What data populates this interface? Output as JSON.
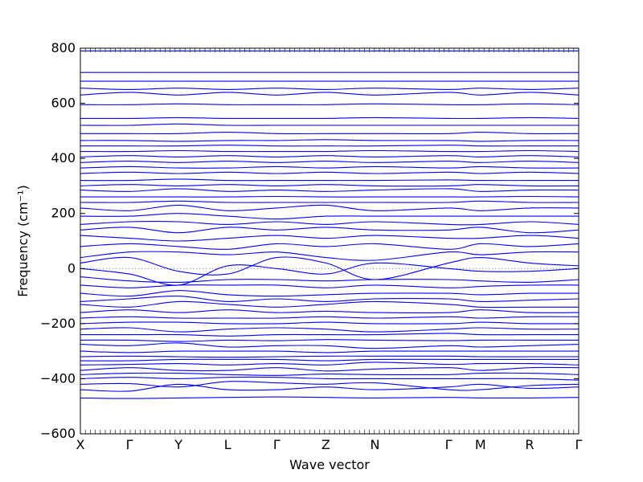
{
  "chart_data": {
    "type": "line",
    "title": "",
    "xlabel": "Wave vector",
    "ylabel": "Frequency (cm⁻¹)",
    "ylim": [
      -600,
      800
    ],
    "yticks": [
      -600,
      -400,
      -200,
      0,
      200,
      400,
      600,
      800
    ],
    "grid": false,
    "legend": "none",
    "zero_line": "dotted",
    "line_color": "#0000ff",
    "kpath": {
      "positions": [
        0,
        1,
        2,
        3,
        4,
        5,
        6,
        7.5,
        8.15,
        9.15,
        10.15
      ],
      "labels": [
        "X",
        "Γ",
        "Y",
        "L",
        "Γ",
        "Z",
        "N",
        "Γ",
        "M",
        "R",
        "Γ"
      ]
    },
    "xlim": [
      0,
      10.15
    ],
    "bands_note_free": true,
    "bands": [
      [
        -470,
        -472,
        -470,
        -468,
        -466,
        -468,
        -470,
        -468,
        -470,
        -470,
        -468
      ],
      [
        -440,
        -445,
        -420,
        -440,
        -440,
        -430,
        -440,
        -430,
        -420,
        -435,
        -430
      ],
      [
        -420,
        -418,
        -430,
        -410,
        -415,
        -420,
        -415,
        -440,
        -440,
        -425,
        -420
      ],
      [
        -400,
        -395,
        -400,
        -395,
        -395,
        -400,
        -400,
        -400,
        -400,
        -400,
        -405
      ],
      [
        -385,
        -380,
        -380,
        -385,
        -388,
        -383,
        -385,
        -385,
        -380,
        -380,
        -385
      ],
      [
        -370,
        -360,
        -370,
        -370,
        -360,
        -372,
        -365,
        -360,
        -370,
        -360,
        -360
      ],
      [
        -350,
        -348,
        -345,
        -350,
        -345,
        -350,
        -340,
        -348,
        -345,
        -345,
        -350
      ],
      [
        -335,
        -335,
        -330,
        -330,
        -330,
        -335,
        -330,
        -330,
        -330,
        -330,
        -330
      ],
      [
        -320,
        -318,
        -320,
        -322,
        -320,
        -318,
        -318,
        -318,
        -320,
        -320,
        -320
      ],
      [
        -300,
        -305,
        -300,
        -300,
        -300,
        -305,
        -300,
        -300,
        -300,
        -300,
        -300
      ],
      [
        -275,
        -280,
        -270,
        -285,
        -280,
        -280,
        -290,
        -280,
        -285,
        -280,
        -275
      ],
      [
        -260,
        -260,
        -265,
        -260,
        -262,
        -258,
        -260,
        -262,
        -260,
        -260,
        -260
      ],
      [
        -240,
        -240,
        -240,
        -245,
        -240,
        -240,
        -240,
        -235,
        -240,
        -240,
        -240
      ],
      [
        -220,
        -215,
        -230,
        -220,
        -215,
        -220,
        -230,
        -220,
        -215,
        -220,
        -220
      ],
      [
        -200,
        -195,
        -195,
        -200,
        -200,
        -195,
        -200,
        -200,
        -195,
        -200,
        -200
      ],
      [
        -180,
        -175,
        -180,
        -180,
        -180,
        -175,
        -180,
        -175,
        -180,
        -175,
        -175
      ],
      [
        -160,
        -150,
        -160,
        -150,
        -160,
        -155,
        -160,
        -160,
        -150,
        -160,
        -160
      ],
      [
        -130,
        -140,
        -120,
        -130,
        -140,
        -130,
        -120,
        -130,
        -140,
        -140,
        -140
      ],
      [
        -120,
        -110,
        -100,
        -120,
        -110,
        -120,
        -110,
        -110,
        -120,
        -115,
        -110
      ],
      [
        -90,
        -100,
        -80,
        -95,
        -100,
        -95,
        -90,
        -90,
        -95,
        -90,
        -90
      ],
      [
        -60,
        -70,
        -60,
        -60,
        -60,
        -70,
        -60,
        -70,
        -65,
        -60,
        -60
      ],
      [
        -30,
        -45,
        -50,
        -40,
        -40,
        -45,
        -40,
        -40,
        -45,
        -50,
        -40
      ],
      [
        0,
        -20,
        -60,
        10,
        0,
        -20,
        20,
        0,
        -10,
        -10,
        0
      ],
      [
        20,
        40,
        -10,
        -20,
        40,
        20,
        -40,
        20,
        40,
        20,
        10
      ],
      [
        40,
        60,
        60,
        50,
        60,
        40,
        30,
        60,
        50,
        60,
        60
      ],
      [
        80,
        90,
        80,
        70,
        90,
        80,
        90,
        70,
        90,
        80,
        90
      ],
      [
        120,
        110,
        100,
        110,
        120,
        110,
        120,
        110,
        110,
        120,
        110
      ],
      [
        140,
        150,
        130,
        150,
        140,
        150,
        140,
        140,
        150,
        130,
        140
      ],
      [
        160,
        170,
        170,
        160,
        170,
        160,
        170,
        160,
        160,
        170,
        160
      ],
      [
        190,
        190,
        200,
        190,
        180,
        190,
        190,
        190,
        190,
        190,
        190
      ],
      [
        220,
        210,
        230,
        210,
        220,
        230,
        210,
        220,
        210,
        220,
        220
      ],
      [
        240,
        240,
        245,
        240,
        240,
        240,
        240,
        240,
        245,
        240,
        240
      ],
      [
        260,
        260,
        260,
        260,
        262,
        260,
        260,
        260,
        260,
        262,
        260
      ],
      [
        285,
        280,
        290,
        280,
        285,
        280,
        285,
        290,
        280,
        285,
        285
      ],
      [
        300,
        305,
        300,
        305,
        300,
        305,
        300,
        300,
        305,
        300,
        300
      ],
      [
        320,
        320,
        325,
        320,
        320,
        320,
        320,
        322,
        320,
        320,
        320
      ],
      [
        345,
        350,
        345,
        350,
        345,
        350,
        345,
        350,
        345,
        350,
        345
      ],
      [
        365,
        370,
        365,
        365,
        370,
        365,
        370,
        365,
        370,
        365,
        365
      ],
      [
        385,
        390,
        385,
        390,
        385,
        390,
        385,
        390,
        385,
        390,
        385
      ],
      [
        405,
        410,
        405,
        410,
        405,
        410,
        405,
        410,
        405,
        410,
        405
      ],
      [
        425,
        425,
        428,
        425,
        425,
        425,
        428,
        425,
        425,
        428,
        425
      ],
      [
        445,
        445,
        445,
        448,
        445,
        445,
        445,
        448,
        445,
        445,
        445
      ],
      [
        465,
        465,
        462,
        465,
        465,
        468,
        465,
        465,
        462,
        465,
        465
      ],
      [
        490,
        490,
        490,
        495,
        490,
        490,
        490,
        490,
        495,
        490,
        490
      ],
      [
        520,
        520,
        525,
        520,
        520,
        520,
        520,
        520,
        520,
        520,
        520
      ],
      [
        545,
        545,
        548,
        545,
        545,
        545,
        548,
        545,
        545,
        548,
        545
      ],
      [
        595,
        595,
        598,
        595,
        595,
        595,
        598,
        595,
        595,
        598,
        595
      ],
      [
        630,
        640,
        630,
        640,
        630,
        640,
        630,
        640,
        630,
        640,
        630
      ],
      [
        655,
        650,
        655,
        650,
        655,
        650,
        655,
        650,
        655,
        650,
        655
      ],
      [
        680,
        680,
        680,
        680,
        680,
        680,
        680,
        680,
        680,
        680,
        680
      ],
      [
        712,
        712,
        712,
        712,
        712,
        712,
        712,
        712,
        712,
        712,
        712
      ],
      [
        790,
        790,
        790,
        790,
        790,
        790,
        790,
        790,
        790,
        790,
        790
      ]
    ]
  }
}
